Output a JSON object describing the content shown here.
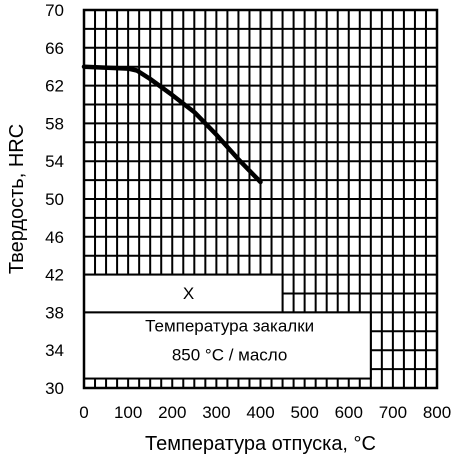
{
  "chart_data": {
    "type": "line",
    "ylabel": "Твердость, HRC",
    "xlabel": "Температура отпуска, °C",
    "xlim": [
      0,
      800
    ],
    "ylim": [
      30,
      70
    ],
    "x_ticks": [
      0,
      100,
      200,
      300,
      400,
      500,
      600,
      700,
      800
    ],
    "y_ticks": [
      30,
      34,
      38,
      42,
      46,
      50,
      54,
      58,
      62,
      66,
      70
    ],
    "grid": true,
    "series": [
      {
        "x": [
          0,
          100,
          120,
          150,
          200,
          250,
          300,
          350,
          400
        ],
        "y": [
          64.0,
          63.8,
          63.6,
          62.7,
          61.0,
          59.2,
          56.8,
          54.2,
          51.8
        ]
      }
    ],
    "legend_mark": "X",
    "annotation": {
      "line1": "Температура закалки",
      "line2": "850 °С / масло"
    }
  }
}
